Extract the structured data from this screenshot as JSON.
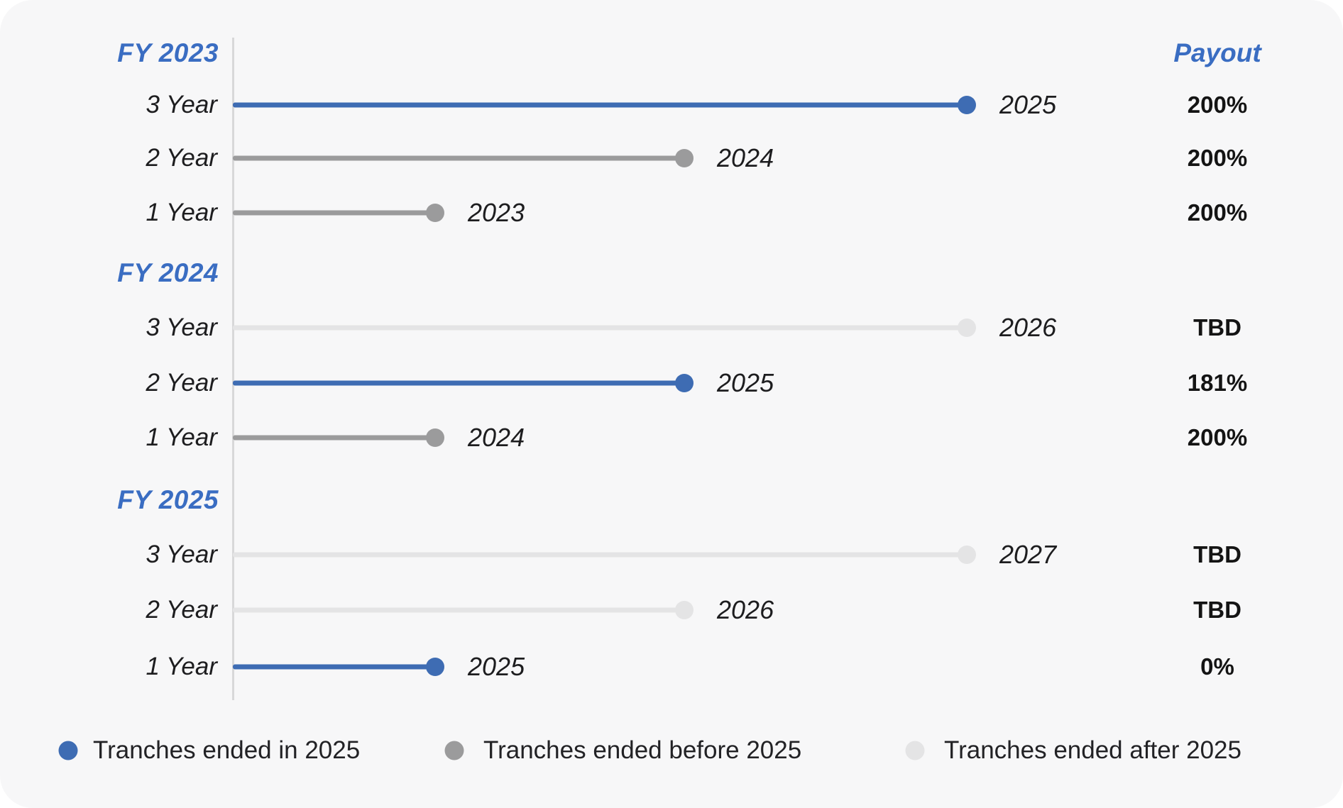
{
  "chart_data": {
    "type": "lollipop-timeline",
    "payout_header": "Payout",
    "layout_hint": "three fiscal-year groups, each with 3/2/1-year tranche bars starting at a shared vertical axis; bar length encodes tranche duration; right column lists payout",
    "groups": [
      {
        "label": "FY 2023",
        "rows": [
          {
            "tranche": "3 Year",
            "duration_years": 3,
            "end_year": "2025",
            "status": "ended_in_2025",
            "payout": "200%"
          },
          {
            "tranche": "2 Year",
            "duration_years": 2,
            "end_year": "2024",
            "status": "ended_before_2025",
            "payout": "200%"
          },
          {
            "tranche": "1 Year",
            "duration_years": 1,
            "end_year": "2023",
            "status": "ended_before_2025",
            "payout": "200%"
          }
        ]
      },
      {
        "label": "FY 2024",
        "rows": [
          {
            "tranche": "3 Year",
            "duration_years": 3,
            "end_year": "2026",
            "status": "ended_after_2025",
            "payout": "TBD"
          },
          {
            "tranche": "2 Year",
            "duration_years": 2,
            "end_year": "2025",
            "status": "ended_in_2025",
            "payout": "181%"
          },
          {
            "tranche": "1 Year",
            "duration_years": 1,
            "end_year": "2024",
            "status": "ended_before_2025",
            "payout": "200%"
          }
        ]
      },
      {
        "label": "FY 2025",
        "rows": [
          {
            "tranche": "3 Year",
            "duration_years": 3,
            "end_year": "2027",
            "status": "ended_after_2025",
            "payout": "TBD"
          },
          {
            "tranche": "2 Year",
            "duration_years": 2,
            "end_year": "2026",
            "status": "ended_after_2025",
            "payout": "TBD"
          },
          {
            "tranche": "1 Year",
            "duration_years": 1,
            "end_year": "2025",
            "status": "ended_in_2025",
            "payout": "0%"
          }
        ]
      }
    ],
    "legend": [
      {
        "label": "Tranches ended in 2025",
        "status": "ended_in_2025"
      },
      {
        "label": "Tranches ended before 2025",
        "status": "ended_before_2025"
      },
      {
        "label": "Tranches ended after 2025",
        "status": "ended_after_2025"
      }
    ],
    "colors": {
      "ended_in_2025": "#3e6cb3",
      "ended_before_2025": "#9b9b9c",
      "ended_after_2025": "#e4e4e5",
      "header_text": "#3a6dc2",
      "axis": "#d8d8d9",
      "card_background": "#f7f7f8",
      "text": "#1d1d1f"
    }
  }
}
